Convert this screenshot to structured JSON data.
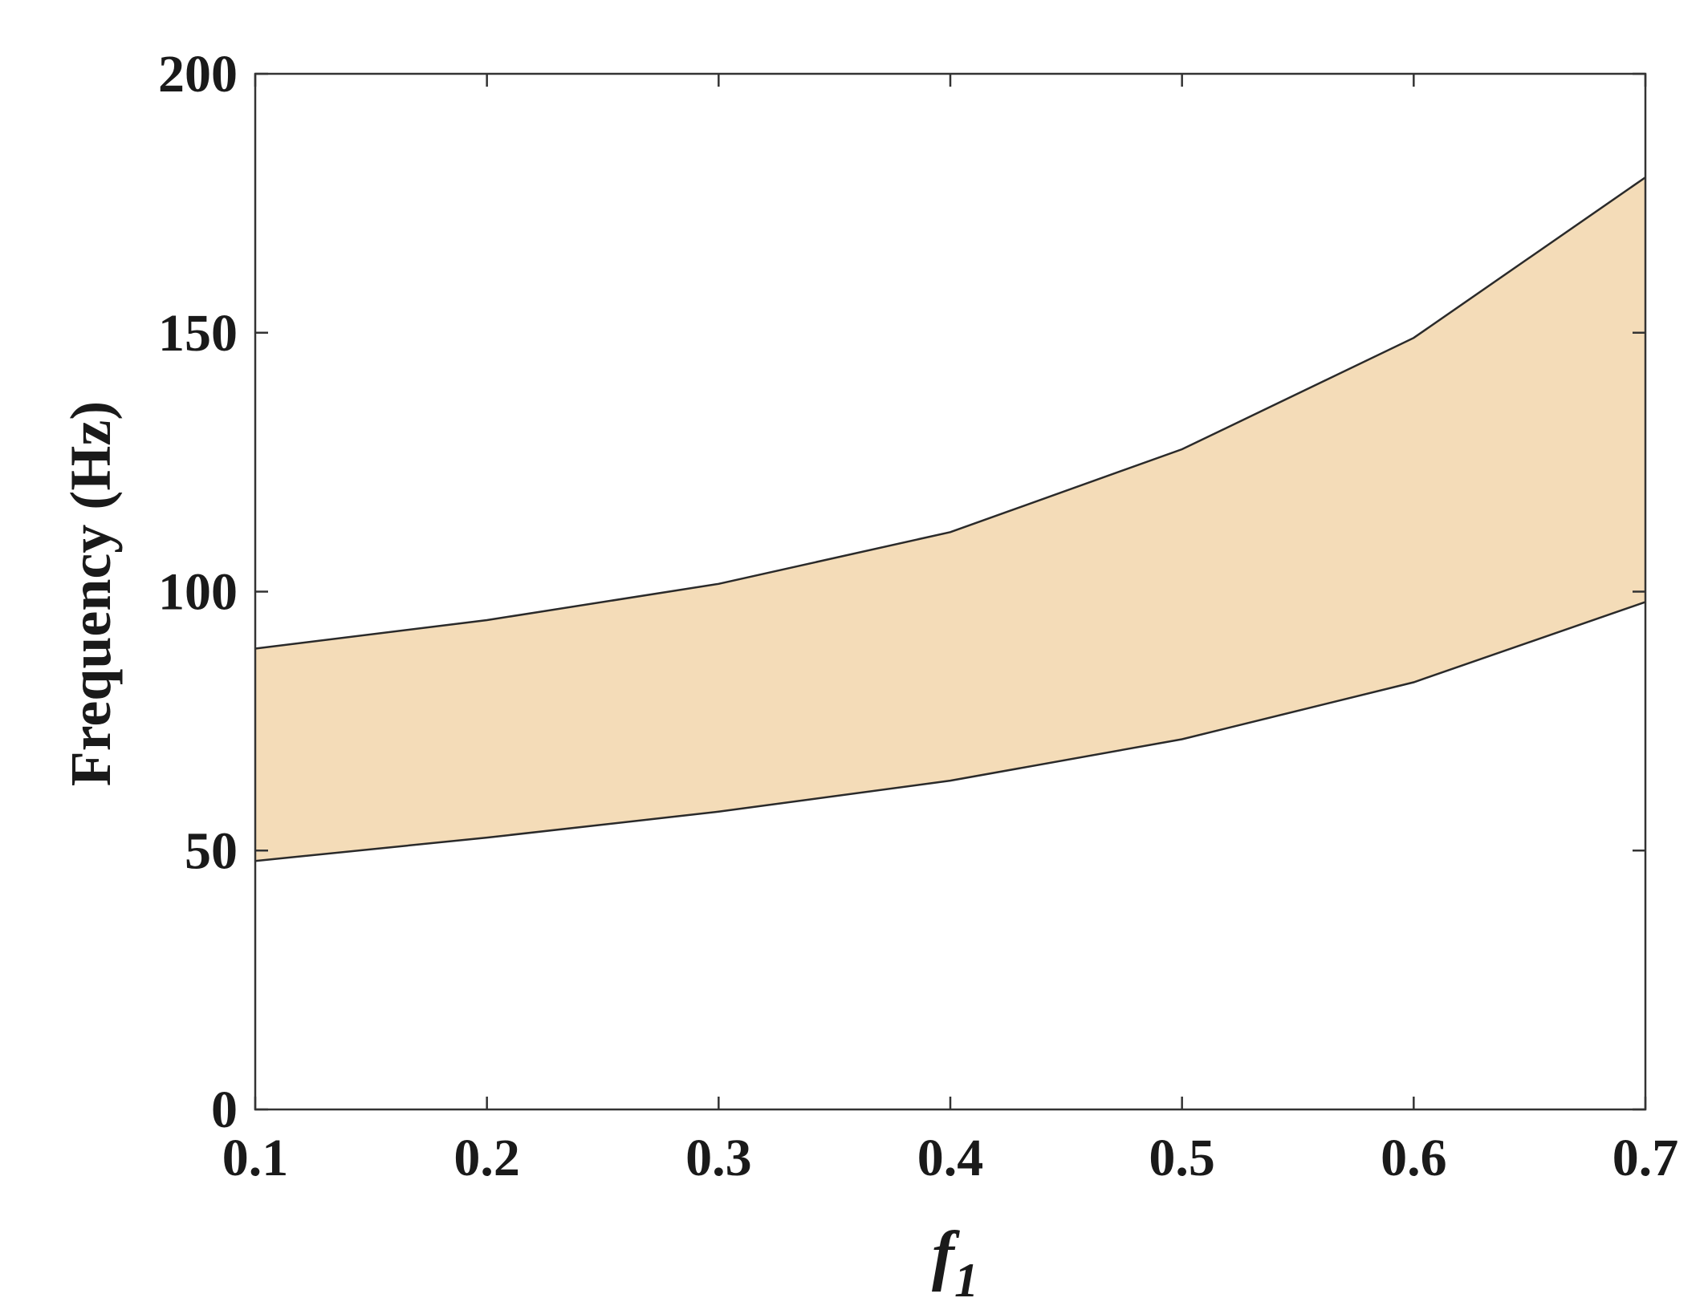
{
  "chart_data": {
    "type": "area",
    "title": "",
    "xlabel": "f",
    "xlabel_subscript": "1",
    "ylabel": "Frequency (Hz)",
    "xlim": [
      0.1,
      0.7
    ],
    "ylim": [
      0,
      200
    ],
    "xticks": [
      "0.1",
      "0.2",
      "0.3",
      "0.4",
      "0.5",
      "0.6",
      "0.7"
    ],
    "yticks": [
      "0",
      "50",
      "100",
      "150",
      "200"
    ],
    "grid": false,
    "x": [
      0.1,
      0.2,
      0.3,
      0.4,
      0.5,
      0.6,
      0.7
    ],
    "series": [
      {
        "values": [
          48,
          52.5,
          57.5,
          63.5,
          71.5,
          82.5,
          98
        ]
      },
      {
        "values": [
          89,
          94.5,
          101.5,
          111.5,
          127.5,
          149,
          180
        ]
      }
    ],
    "fill_color": "#f4dcb8",
    "line_color": "#2a2a2a"
  }
}
